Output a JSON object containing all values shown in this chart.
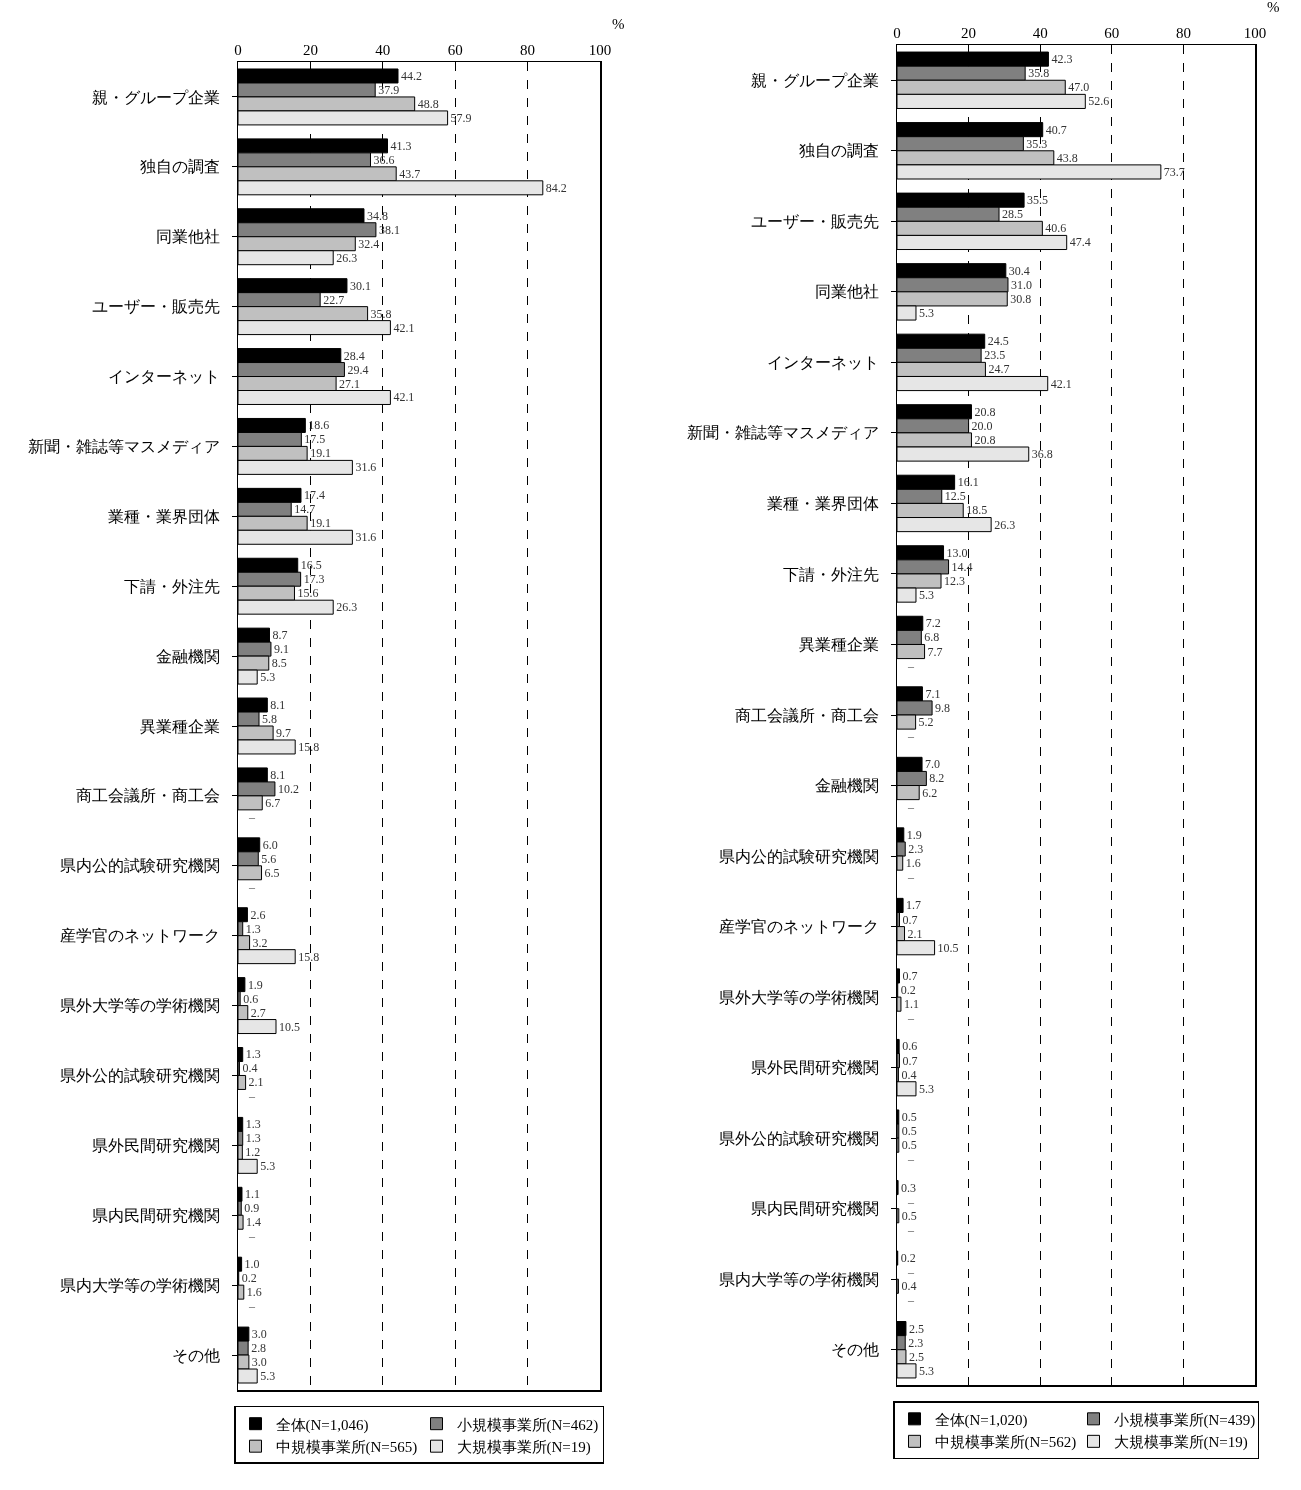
{
  "chart_data": [
    {
      "type": "bar",
      "orientation": "horizontal",
      "xlabel": "%",
      "xlim": [
        0,
        100
      ],
      "xticks": [
        0,
        20,
        40,
        60,
        80,
        100
      ],
      "grid": "x",
      "legend": "bottom",
      "categories": [
        "親・グループ企業",
        "独自の調査",
        "同業他社",
        "ユーザー・販売先",
        "インターネット",
        "新聞・雑誌等マスメディア",
        "業種・業界団体",
        "下請・外注先",
        "金融機関",
        "異業種企業",
        "商工会議所・商工会",
        "県内公的試験研究機関",
        "産学官のネットワーク",
        "県外大学等の学術機関",
        "県外公的試験研究機関",
        "県外民間研究機関",
        "県内民間研究機関",
        "県内大学等の学術機関",
        "その他"
      ],
      "series": [
        {
          "name": "全体(N=1,046)",
          "color": "#000000",
          "values": [
            44.2,
            41.3,
            34.8,
            30.1,
            28.4,
            18.6,
            17.4,
            16.5,
            8.7,
            8.1,
            8.1,
            6.0,
            2.6,
            1.9,
            1.3,
            1.3,
            1.1,
            1.0,
            3.0
          ],
          "value_labels": [
            "44.2",
            "41.3",
            "34.8",
            "30.1",
            "28.4",
            "18.6",
            "17.4",
            "16.5",
            "8.7",
            "8.1",
            "8.1",
            "6.0",
            "2.6",
            "1.9",
            "1.3",
            "1.3",
            "1.1",
            "1.0",
            "3.0"
          ]
        },
        {
          "name": "小規模事業所(N=462)",
          "color": "#808080",
          "values": [
            37.9,
            36.6,
            38.1,
            22.7,
            29.4,
            17.5,
            14.7,
            17.3,
            9.1,
            5.8,
            10.2,
            5.6,
            1.3,
            0.6,
            0.4,
            1.3,
            0.9,
            0.2,
            2.8
          ],
          "value_labels": [
            "37.9",
            "36.6",
            "38.1",
            "22.7",
            "29.4",
            "17.5",
            "14.7",
            "17.3",
            "9.1",
            "5.8",
            "10.2",
            "5.6",
            "1.3",
            "0.6",
            "0.4",
            "1.3",
            "0.9",
            "0.2",
            "2.8"
          ]
        },
        {
          "name": "中規模事業所(N=565)",
          "color": "#c0c0c0",
          "values": [
            48.8,
            43.7,
            32.4,
            35.8,
            27.1,
            19.1,
            19.1,
            15.6,
            8.5,
            9.7,
            6.7,
            6.5,
            3.2,
            2.7,
            2.1,
            1.2,
            1.4,
            1.6,
            3.0
          ],
          "value_labels": [
            "48.8",
            "43.7",
            "32.4",
            "35.8",
            "27.1",
            "19.1",
            "19.1",
            "15.6",
            "8.5",
            "9.7",
            "6.7",
            "6.5",
            "3.2",
            "2.7",
            "2.1",
            "1.2",
            "1.4",
            "1.6",
            "3.0"
          ]
        },
        {
          "name": "大規模事業所(N=19)",
          "color": "#e6e6e6",
          "values": [
            57.9,
            84.2,
            26.3,
            42.1,
            42.1,
            31.6,
            31.6,
            26.3,
            5.3,
            15.8,
            null,
            null,
            15.8,
            10.5,
            null,
            5.3,
            null,
            null,
            5.3
          ],
          "value_labels": [
            "57.9",
            "84.2",
            "26.3",
            "42.1",
            "42.1",
            "31.6",
            "31.6",
            "26.3",
            "5.3",
            "15.8",
            "–",
            "–",
            "15.8",
            "10.5",
            "–",
            "5.3",
            "–",
            "–",
            "5.3"
          ]
        }
      ]
    },
    {
      "type": "bar",
      "orientation": "horizontal",
      "xlabel": "%",
      "xlim": [
        0,
        100
      ],
      "xticks": [
        0,
        20,
        40,
        60,
        80,
        100
      ],
      "grid": "x",
      "legend": "bottom",
      "categories": [
        "親・グループ企業",
        "独自の調査",
        "ユーザー・販売先",
        "同業他社",
        "インターネット",
        "新聞・雑誌等マスメディア",
        "業種・業界団体",
        "下請・外注先",
        "異業種企業",
        "商工会議所・商工会",
        "金融機関",
        "県内公的試験研究機関",
        "産学官のネットワーク",
        "県外大学等の学術機関",
        "県外民間研究機関",
        "県外公的試験研究機関",
        "県内民間研究機関",
        "県内大学等の学術機関",
        "その他"
      ],
      "series": [
        {
          "name": "全体(N=1,020)",
          "color": "#000000",
          "values": [
            42.3,
            40.7,
            35.5,
            30.4,
            24.5,
            20.8,
            16.1,
            13.0,
            7.2,
            7.1,
            7.0,
            1.9,
            1.7,
            0.7,
            0.6,
            0.5,
            0.3,
            0.2,
            2.5
          ],
          "value_labels": [
            "42.3",
            "40.7",
            "35.5",
            "30.4",
            "24.5",
            "20.8",
            "16.1",
            "13.0",
            "7.2",
            "7.1",
            "7.0",
            "1.9",
            "1.7",
            "0.7",
            "0.6",
            "0.5",
            "0.3",
            "0.2",
            "2.5"
          ]
        },
        {
          "name": "小規模事業所(N=439)",
          "color": "#808080",
          "values": [
            35.8,
            35.3,
            28.5,
            31.0,
            23.5,
            20.0,
            12.5,
            14.4,
            6.8,
            9.8,
            8.2,
            2.3,
            0.7,
            0.2,
            0.7,
            0.5,
            null,
            null,
            2.3
          ],
          "value_labels": [
            "35.8",
            "35.3",
            "28.5",
            "31.0",
            "23.5",
            "20.0",
            "12.5",
            "14.4",
            "6.8",
            "9.8",
            "8.2",
            "2.3",
            "0.7",
            "0.2",
            "0.7",
            "0.5",
            "–",
            "–",
            "2.3"
          ]
        },
        {
          "name": "中規模事業所(N=562)",
          "color": "#c0c0c0",
          "values": [
            47.0,
            43.8,
            40.6,
            30.8,
            24.7,
            20.8,
            18.5,
            12.3,
            7.7,
            5.2,
            6.2,
            1.6,
            2.1,
            1.1,
            0.4,
            0.5,
            0.5,
            0.4,
            2.5
          ],
          "value_labels": [
            "47.0",
            "43.8",
            "40.6",
            "30.8",
            "24.7",
            "20.8",
            "18.5",
            "12.3",
            "7.7",
            "5.2",
            "6.2",
            "1.6",
            "2.1",
            "1.1",
            "0.4",
            "0.5",
            "0.5",
            "0.4",
            "2.5"
          ]
        },
        {
          "name": "大規模事業所(N=19)",
          "color": "#e6e6e6",
          "values": [
            52.6,
            73.7,
            47.4,
            5.3,
            42.1,
            36.8,
            26.3,
            5.3,
            null,
            null,
            null,
            null,
            10.5,
            null,
            5.3,
            null,
            null,
            null,
            5.3
          ],
          "value_labels": [
            "52.6",
            "73.7",
            "47.4",
            "5.3",
            "42.1",
            "36.8",
            "26.3",
            "5.3",
            "–",
            "–",
            "–",
            "–",
            "10.5",
            "–",
            "5.3",
            "–",
            "–",
            "–",
            "5.3"
          ]
        }
      ]
    }
  ]
}
